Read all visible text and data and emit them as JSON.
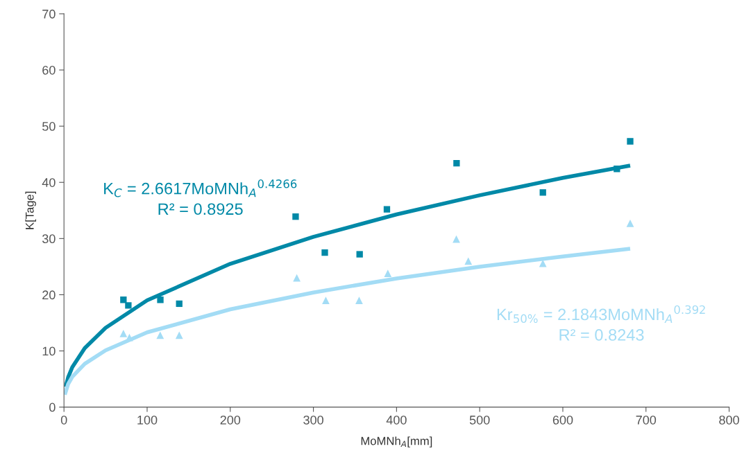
{
  "chart_data": {
    "type": "scatter",
    "xlabel": "MoMNh$_{A}$[mm]",
    "ylabel": "K[Tage]",
    "xlim": [
      0,
      800
    ],
    "xticks": [
      0,
      100,
      200,
      300,
      400,
      500,
      600,
      700,
      800
    ],
    "ylim": [
      0,
      70
    ],
    "yticks": [
      0,
      10,
      20,
      30,
      40,
      50,
      60,
      70
    ],
    "grid": false,
    "annotations": [
      "K$_{C}$ = 2.6617MoMNh$_{A}$$^{0.4266}$\nR² = 0.8925",
      "Kr$_{50%}$ = 2.1843MoMNh$_{A}$$^{0.392}$\nR² = 0.8243"
    ],
    "series": [
      {
        "marker": "square",
        "color": "#0089a7",
        "x": [
          71.5,
          77.4,
          115.9,
          138.6,
          278.6,
          313.7,
          355.6,
          388.4,
          472.2,
          576,
          665,
          681
        ],
        "values": [
          19.1,
          18.1,
          19.1,
          18.4,
          33.9,
          27.5,
          27.2,
          35.2,
          43.4,
          38.2,
          42.4,
          47.3
        ]
      },
      {
        "marker": "triangle",
        "color": "#a3dcf5",
        "x": [
          71.5,
          78.7,
          115.7,
          138.6,
          280,
          314.9,
          355,
          389.5,
          471.9,
          486.3,
          576,
          681
        ],
        "values": [
          13.1,
          12.4,
          12.8,
          12.8,
          23.0,
          19.0,
          19.0,
          23.8,
          29.9,
          26.0,
          25.6,
          32.7
        ]
      },
      {
        "type": "line",
        "color": "#0089a7",
        "x": [
          2,
          5,
          10,
          25,
          50,
          100,
          200,
          300,
          400,
          500,
          600,
          681
        ],
        "values": [
          3.6,
          5.3,
          7.1,
          10.5,
          14.1,
          19.0,
          25.5,
          30.3,
          34.3,
          37.7,
          40.8,
          43.0
        ]
      },
      {
        "type": "line",
        "color": "#a3dcf5",
        "x": [
          1,
          5,
          10,
          25,
          50,
          100,
          200,
          300,
          400,
          500,
          600,
          681
        ],
        "values": [
          2.2,
          4.1,
          5.4,
          7.7,
          10.1,
          13.3,
          17.4,
          20.4,
          22.9,
          25.0,
          26.8,
          28.2
        ]
      }
    ]
  }
}
